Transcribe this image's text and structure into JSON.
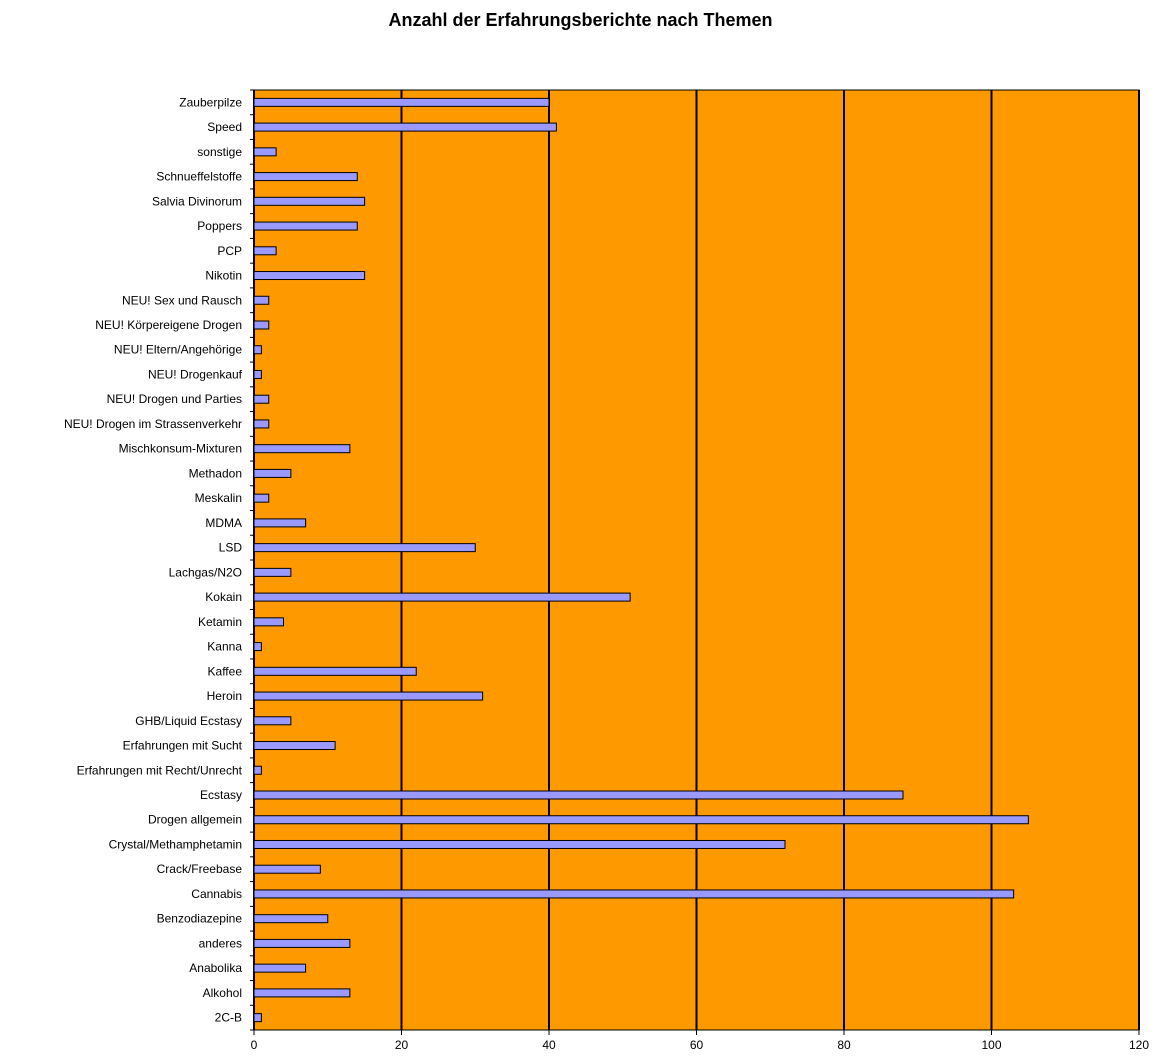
{
  "chart_data": {
    "type": "bar",
    "orientation": "horizontal",
    "title": "Anzahl der Erfahrungsberichte nach Themen",
    "xlabel": "",
    "ylabel": "",
    "xlim": [
      0,
      120
    ],
    "x_ticks": [
      0,
      20,
      40,
      60,
      80,
      100,
      120
    ],
    "grid": true,
    "legend": "none",
    "colors": {
      "plot_bg": "#ff9900",
      "bar_fill": "#9999ff",
      "bar_edge": "#000000",
      "grid": "#000000"
    },
    "categories": [
      "Zauberpilze",
      "Speed",
      "sonstige",
      "Schnueffelstoffe",
      "Salvia Divinorum",
      "Poppers",
      "PCP",
      "Nikotin",
      "NEU! Sex und Rausch",
      "NEU! Körpereigene Drogen",
      "NEU! Eltern/Angehörige",
      "NEU! Drogenkauf",
      "NEU! Drogen und Parties",
      "NEU! Drogen im Strassenverkehr",
      "Mischkonsum-Mixturen",
      "Methadon",
      "Meskalin",
      "MDMA",
      "LSD",
      "Lachgas/N2O",
      "Kokain",
      "Ketamin",
      "Kanna",
      "Kaffee",
      "Heroin",
      "GHB/Liquid Ecstasy",
      "Erfahrungen mit Sucht",
      "Erfahrungen mit Recht/Unrecht",
      "Ecstasy",
      "Drogen allgemein",
      "Crystal/Methamphetamin",
      "Crack/Freebase",
      "Cannabis",
      "Benzodiazepine",
      "anderes",
      "Anabolika",
      "Alkohol",
      "2C-B"
    ],
    "values": [
      40,
      41,
      3,
      14,
      15,
      14,
      3,
      15,
      2,
      2,
      1,
      1,
      2,
      2,
      13,
      5,
      2,
      7,
      30,
      5,
      51,
      4,
      1,
      22,
      31,
      5,
      11,
      1,
      88,
      105,
      72,
      9,
      103,
      10,
      13,
      7,
      13,
      1
    ]
  }
}
